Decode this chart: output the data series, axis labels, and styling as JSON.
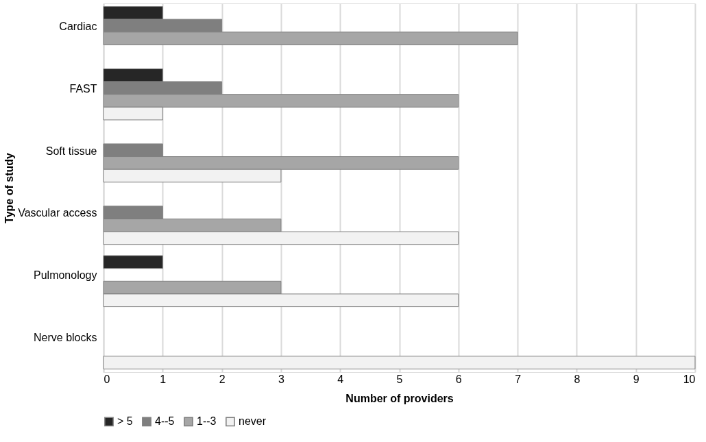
{
  "chart_data": {
    "type": "bar",
    "orientation": "horizontal",
    "xlabel": "Number of providers",
    "ylabel": "Type of study",
    "categories": [
      "Cardiac",
      "FAST",
      "Soft tissue",
      "Vascular access",
      "Pulmonology",
      "Nerve blocks"
    ],
    "series": [
      {
        "name": "> 5",
        "color": "#262626",
        "values": [
          1,
          1,
          null,
          null,
          1,
          null
        ]
      },
      {
        "name": "4--5",
        "color": "#7f7f7f",
        "values": [
          2,
          2,
          1,
          1,
          null,
          null
        ]
      },
      {
        "name": "1--3",
        "color": "#a6a6a6",
        "values": [
          7,
          6,
          6,
          3,
          3,
          null
        ]
      },
      {
        "name": "never",
        "color": "#f2f2f2",
        "values": [
          null,
          1,
          3,
          6,
          6,
          10
        ]
      }
    ],
    "xlim": [
      0,
      10
    ],
    "xticks": [
      0,
      1,
      2,
      3,
      4,
      5,
      6,
      7,
      8,
      9,
      10
    ],
    "grid": "x",
    "legend": "bottom"
  }
}
